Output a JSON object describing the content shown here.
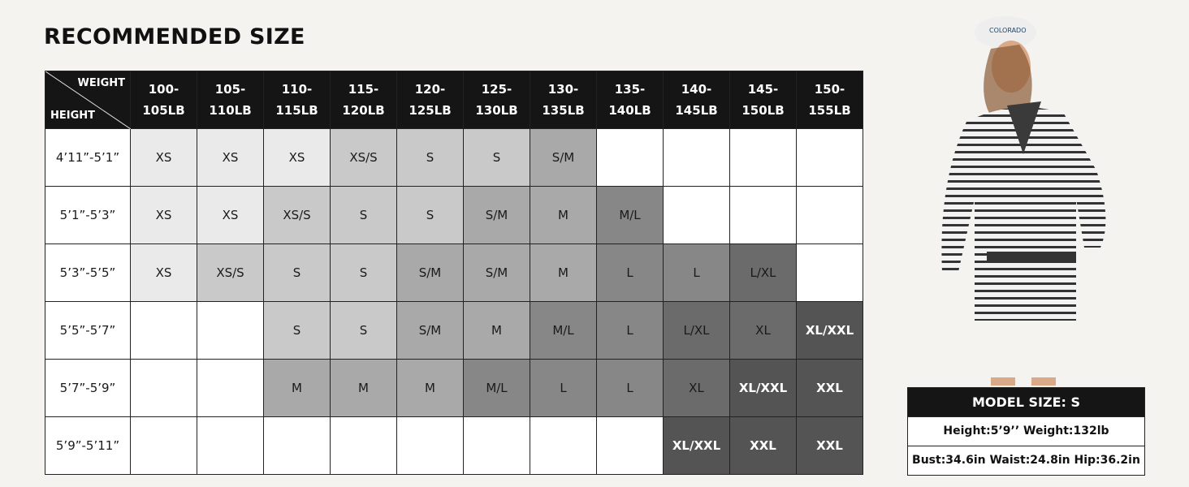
{
  "title": "RECOMMENDED SIZE",
  "table": {
    "corner_top": "WEIGHT",
    "corner_bottom": "HEIGHT",
    "weights": [
      [
        "100-",
        "105LB"
      ],
      [
        "105-",
        "110LB"
      ],
      [
        "110-",
        "115LB"
      ],
      [
        "115-",
        "120LB"
      ],
      [
        "120-",
        "125LB"
      ],
      [
        "125-",
        "130LB"
      ],
      [
        "130-",
        "135LB"
      ],
      [
        "135-",
        "140LB"
      ],
      [
        "140-",
        "145LB"
      ],
      [
        "145-",
        "150LB"
      ],
      [
        "150-",
        "155LB"
      ]
    ],
    "rows": [
      {
        "height": "4’11”-5’1”",
        "sizes": [
          "XS",
          "XS",
          "XS",
          "XS/S",
          "S",
          "S",
          "S/M",
          "",
          "",
          "",
          ""
        ]
      },
      {
        "height": "5’1”-5’3”",
        "sizes": [
          "XS",
          "XS",
          "XS/S",
          "S",
          "S",
          "S/M",
          "M",
          "M/L",
          "",
          "",
          ""
        ]
      },
      {
        "height": "5’3”-5’5”",
        "sizes": [
          "XS",
          "XS/S",
          "S",
          "S",
          "S/M",
          "S/M",
          "M",
          "L",
          "L",
          "L/XL",
          ""
        ]
      },
      {
        "height": "5’5”-5’7”",
        "sizes": [
          "",
          "",
          "S",
          "S",
          "S/M",
          "M",
          "M/L",
          "L",
          "L/XL",
          "XL",
          "XL/XXL"
        ]
      },
      {
        "height": "5’7”-5’9”",
        "sizes": [
          "",
          "",
          "M",
          "M",
          "M",
          "M/L",
          "L",
          "L",
          "XL",
          "XL/XXL",
          "XXL"
        ]
      },
      {
        "height": "5’9”-5’11”",
        "sizes": [
          "",
          "",
          "",
          "",
          "",
          "",
          "",
          "",
          "XL/XXL",
          "XXL",
          "XXL"
        ]
      }
    ],
    "size_colors": {
      "XS": "#eaeaea",
      "XS/S": "#c9c9c9",
      "S": "#c9c9c9",
      "S/M": "#a9a9a9",
      "M": "#a9a9a9",
      "M/L": "#878787",
      "L": "#878787",
      "L/XL": "#6b6b6b",
      "XL": "#6b6b6b",
      "XL/XXL": "#545454",
      "XXL": "#545454"
    }
  },
  "model": {
    "header": "MODEL SIZE: S",
    "line1": "Height:5’9’’ Weight:132lb",
    "line2": "Bust:34.6in Waist:24.8in Hip:36.2in",
    "cap_text": "COLORADO"
  }
}
